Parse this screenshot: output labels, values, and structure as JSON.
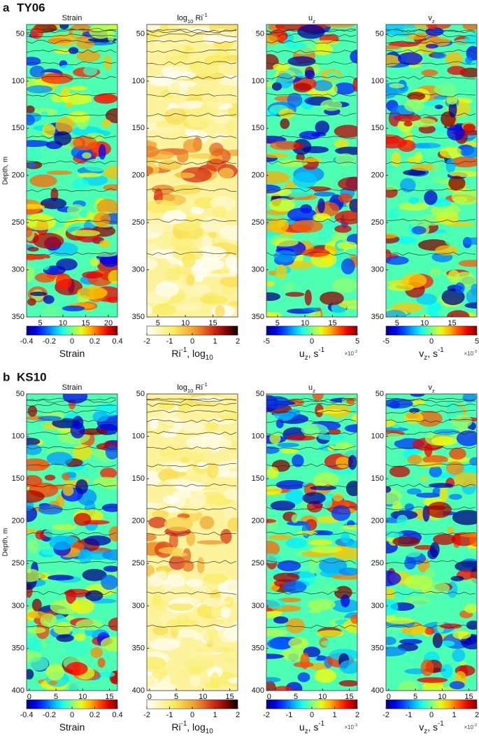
{
  "chart_data": [
    {
      "type": "heatmap",
      "label": "a",
      "name": "TY06",
      "ylabel": "Depth, m",
      "ylim": [
        40,
        350
      ],
      "yticks": [
        50,
        100,
        150,
        200,
        250,
        300,
        350
      ],
      "panels": [
        {
          "title": [
            {
              "text": "Strain"
            }
          ],
          "xlim": [
            2,
            22
          ],
          "xticks": [
            5,
            10,
            15,
            20
          ],
          "colormap": "jet",
          "clim": [
            -0.4,
            0.4
          ],
          "cticks": [
            -0.4,
            -0.2,
            0,
            0.2,
            0.4
          ],
          "clabel": [
            {
              "text": "Strain"
            }
          ]
        },
        {
          "title": [
            {
              "text": "log"
            },
            {
              "text": "10",
              "shift": "sub"
            },
            {
              "text": " Ri"
            },
            {
              "text": "-1",
              "shift": "super"
            }
          ],
          "xlim": [
            3,
            19.5
          ],
          "xticks": [
            5,
            10,
            15
          ],
          "colormap": "hot",
          "clim": [
            -2,
            2
          ],
          "cticks": [
            -2,
            -1,
            0,
            1,
            2
          ],
          "clabel": [
            {
              "text": "Ri"
            },
            {
              "text": "-1",
              "shift": "super"
            },
            {
              "text": ", log"
            },
            {
              "text": "10",
              "shift": "sub"
            }
          ]
        },
        {
          "title": [
            {
              "text": "u"
            },
            {
              "text": "z",
              "shift": "sub"
            }
          ],
          "xlim": [
            3,
            19.5
          ],
          "xticks": [
            5,
            10,
            15
          ],
          "colormap": "jet",
          "clim": [
            -5,
            5
          ],
          "cticks": [
            -5,
            0,
            5
          ],
          "clabel": [
            {
              "text": "u"
            },
            {
              "text": "z",
              "shift": "sub"
            },
            {
              "text": ", s"
            },
            {
              "text": "-1",
              "shift": "super"
            }
          ],
          "exponent": [
            {
              "text": "×10"
            },
            {
              "text": "-3",
              "shift": "super"
            }
          ]
        },
        {
          "title": [
            {
              "text": "v"
            },
            {
              "text": "z",
              "shift": "sub"
            }
          ],
          "xlim": [
            3,
            19.5
          ],
          "xticks": [
            5,
            10,
            15
          ],
          "colormap": "jet",
          "clim": [
            -5,
            5
          ],
          "cticks": [
            -5,
            0,
            5
          ],
          "clabel": [
            {
              "text": "v"
            },
            {
              "text": "z",
              "shift": "sub"
            },
            {
              "text": ", s"
            },
            {
              "text": "-1",
              "shift": "super"
            }
          ],
          "exponent": [
            {
              "text": "×10"
            },
            {
              "text": "-3",
              "shift": "super"
            }
          ]
        }
      ]
    },
    {
      "type": "heatmap",
      "label": "b",
      "name": "KS10",
      "ylabel": "Depth, m",
      "ylim": [
        50,
        400
      ],
      "yticks": [
        50,
        100,
        150,
        200,
        250,
        300,
        350,
        400
      ],
      "panels": [
        {
          "title": [
            {
              "text": "Strain"
            }
          ],
          "xlim": [
            -0.5,
            16.5
          ],
          "xticks": [
            0,
            5,
            10,
            15
          ],
          "colormap": "jet",
          "clim": [
            -0.4,
            0.4
          ],
          "cticks": [
            -0.4,
            -0.2,
            0,
            0.2,
            0.4
          ],
          "clabel": [
            {
              "text": "Strain"
            }
          ]
        },
        {
          "title": [
            {
              "text": "log"
            },
            {
              "text": "10",
              "shift": "sub"
            },
            {
              "text": " Ri"
            },
            {
              "text": "-1",
              "shift": "super"
            }
          ],
          "xlim": [
            -0.5,
            16.5
          ],
          "xticks": [
            0,
            5,
            10,
            15
          ],
          "colormap": "hot",
          "clim": [
            -2,
            2
          ],
          "cticks": [
            -2,
            -1,
            0,
            1,
            2
          ],
          "clabel": [
            {
              "text": "Ri"
            },
            {
              "text": "-1",
              "shift": "super"
            },
            {
              "text": ", log"
            },
            {
              "text": "10",
              "shift": "sub"
            }
          ]
        },
        {
          "title": [
            {
              "text": "u"
            },
            {
              "text": "z",
              "shift": "sub"
            }
          ],
          "xlim": [
            -0.5,
            16.5
          ],
          "xticks": [
            0,
            5,
            10,
            15
          ],
          "colormap": "jet",
          "clim": [
            -2,
            2
          ],
          "cticks": [
            -2,
            -1,
            0,
            1,
            2
          ],
          "clabel": [
            {
              "text": "u"
            },
            {
              "text": "z",
              "shift": "sub"
            },
            {
              "text": ", s"
            },
            {
              "text": "-1",
              "shift": "super"
            }
          ],
          "exponent": [
            {
              "text": "×10"
            },
            {
              "text": "-3",
              "shift": "super"
            }
          ]
        },
        {
          "title": [
            {
              "text": "v"
            },
            {
              "text": "z",
              "shift": "sub"
            }
          ],
          "xlim": [
            -0.5,
            16.5
          ],
          "xticks": [
            0,
            5,
            10,
            15
          ],
          "colormap": "jet",
          "clim": [
            -2,
            2
          ],
          "cticks": [
            -2,
            -1,
            0,
            1,
            2
          ],
          "clabel": [
            {
              "text": "v"
            },
            {
              "text": "z",
              "shift": "sub"
            },
            {
              "text": ", s"
            },
            {
              "text": "-1",
              "shift": "super"
            }
          ],
          "exponent": [
            {
              "text": "×10"
            },
            {
              "text": "-3",
              "shift": "super"
            }
          ]
        }
      ]
    }
  ]
}
